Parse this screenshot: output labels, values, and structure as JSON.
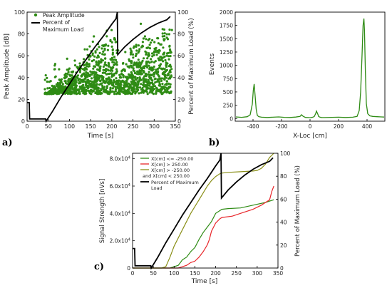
{
  "chart_data": [
    {
      "panel": "a)",
      "type": "scatter",
      "xlabel": "Time [s]",
      "ylabel": "Peak Amplitude [dB]",
      "y2label": "Percent of Maximum Load (%)",
      "xlim": [
        0,
        350
      ],
      "ylim": [
        0,
        100
      ],
      "y2lim": [
        0,
        100
      ],
      "xticks": [
        "0",
        "50",
        "100",
        "150",
        "200",
        "250",
        "300",
        "350"
      ],
      "yticks": [
        "0",
        "20",
        "40",
        "60",
        "80",
        "100"
      ],
      "y2ticks": [
        "0",
        "20",
        "40",
        "60",
        "80",
        "100"
      ],
      "legend": [
        "Peak Amplitude",
        "Percent of Maximum Load"
      ],
      "legend_position": "top-left",
      "colors": {
        "scatter": "#2e8b14",
        "load": "#000000"
      },
      "series": [
        {
          "name": "Peak Amplitude",
          "type": "scatter",
          "note_range": "points between about 40 and 350 s, amplitudes about 25–95 dB, rising envelope up to 212 s, then a dip and recovery"
        },
        {
          "name": "Percent of Maximum Load",
          "type": "line",
          "axis": "right",
          "x": [
            0,
            5,
            6,
            44,
            45,
            60,
            80,
            100,
            120,
            140,
            160,
            180,
            200,
            210,
            213,
            214,
            230,
            250,
            270,
            290,
            310,
            330,
            338
          ],
          "y": [
            17,
            17,
            2,
            2,
            0,
            9,
            22,
            34,
            46,
            57,
            68,
            78,
            89,
            94,
            100,
            61,
            68,
            75,
            81,
            86,
            90,
            93,
            96
          ]
        }
      ]
    },
    {
      "panel": "b)",
      "type": "line",
      "xlabel": "X-Loc [cm]",
      "ylabel": "Events",
      "xlim": [
        -525,
        525
      ],
      "ylim": [
        -50,
        2000
      ],
      "xticks": [
        "-400",
        "-200",
        "0",
        "200",
        "400"
      ],
      "yticks": [
        "0",
        "250",
        "500",
        "750",
        "1000",
        "1250",
        "1500",
        "1750",
        "2000"
      ],
      "colors": {
        "line": "#2e8b14"
      },
      "series": [
        {
          "name": "Events",
          "x": [
            -520,
            -480,
            -440,
            -420,
            -405,
            -398,
            -392,
            -385,
            -378,
            -370,
            -360,
            -340,
            -300,
            -260,
            -220,
            -180,
            -140,
            -100,
            -70,
            -60,
            -50,
            -40,
            -30,
            -10,
            0,
            10,
            20,
            30,
            40,
            45,
            55,
            60,
            70,
            80,
            100,
            150,
            200,
            250,
            300,
            330,
            345,
            355,
            365,
            372,
            378,
            382,
            388,
            395,
            405,
            420,
            440,
            470,
            500,
            520
          ],
          "y": [
            30,
            22,
            35,
            70,
            270,
            530,
            650,
            420,
            180,
            60,
            35,
            25,
            20,
            25,
            30,
            22,
            20,
            28,
            40,
            70,
            45,
            30,
            20,
            18,
            15,
            20,
            25,
            40,
            95,
            140,
            80,
            40,
            25,
            20,
            18,
            22,
            25,
            20,
            25,
            40,
            150,
            500,
            1200,
            1750,
            1880,
            1650,
            900,
            280,
            90,
            50,
            40,
            35,
            30,
            28
          ]
        }
      ]
    },
    {
      "panel": "c)",
      "type": "line",
      "xlabel": "Time [s]",
      "ylabel": "Signal Strength [nVs]",
      "y2label": "Percent of Maximum Load (%)",
      "xlim": [
        0,
        350
      ],
      "ylim": [
        0,
        84000
      ],
      "y2lim": [
        0,
        100
      ],
      "xticks": [
        "0",
        "50",
        "100",
        "150",
        "200",
        "250",
        "300",
        "350"
      ],
      "yticks": [
        "0",
        "2.0x10^4",
        "4.0x10^4",
        "6.0x10^4",
        "8.0x10^4"
      ],
      "y2ticks": [
        "0",
        "20",
        "40",
        "60",
        "80",
        "100"
      ],
      "legend": [
        "X[cm] <= -250.00",
        "X[cm] > 250.00",
        "X[cm] > -250.00",
        "and X[cm] < 250.00",
        "Percent of Maximum",
        "Load"
      ],
      "legend_position": "top-left",
      "colors": {
        "left": "#2e8b14",
        "right": "#e8262a",
        "middle": "#8a8f18",
        "load": "#000000"
      },
      "series": [
        {
          "name": "X[cm] <= -250.00",
          "x": [
            0,
            90,
            110,
            120,
            130,
            140,
            150,
            160,
            170,
            180,
            190,
            200,
            210,
            215,
            230,
            260,
            290,
            320,
            340
          ],
          "y": [
            0,
            0,
            2000,
            6000,
            8000,
            12000,
            15000,
            21000,
            26000,
            30000,
            34000,
            40000,
            42000,
            43000,
            43500,
            44000,
            46000,
            48000,
            50000
          ]
        },
        {
          "name": "X[cm] > 250.00",
          "x": [
            0,
            110,
            130,
            140,
            150,
            160,
            170,
            180,
            185,
            190,
            200,
            210,
            215,
            240,
            260,
            290,
            310,
            330,
            335,
            340
          ],
          "y": [
            0,
            0,
            2000,
            4000,
            5000,
            8000,
            12000,
            17000,
            21000,
            27000,
            33000,
            36000,
            37000,
            38000,
            40000,
            43000,
            46000,
            50000,
            56000,
            60000
          ]
        },
        {
          "name": "X[cm] > -250.00 and X[cm] < 250.00",
          "x": [
            0,
            70,
            80,
            90,
            100,
            110,
            120,
            140,
            160,
            180,
            190,
            200,
            210,
            215,
            230,
            260,
            290,
            300,
            310,
            320,
            330,
            340
          ],
          "y": [
            0,
            0,
            1000,
            8000,
            16000,
            22000,
            28000,
            40000,
            50000,
            60000,
            64000,
            67000,
            69000,
            69500,
            70000,
            70500,
            71000,
            71500,
            73000,
            76000,
            81000,
            84000
          ]
        },
        {
          "name": "Percent of Maximum Load",
          "axis": "right",
          "x": [
            0,
            5,
            6,
            44,
            45,
            60,
            80,
            100,
            120,
            140,
            160,
            180,
            200,
            210,
            213,
            214,
            230,
            250,
            270,
            290,
            310,
            330,
            338
          ],
          "y": [
            17,
            17,
            2,
            2,
            0,
            9,
            22,
            34,
            46,
            57,
            68,
            78,
            89,
            94,
            100,
            61,
            68,
            75,
            81,
            86,
            90,
            93,
            96
          ]
        }
      ]
    }
  ],
  "labels": {
    "a": {
      "letter": "a)",
      "xlabel": "Time [s]",
      "ylabel": "Peak Amplitude [dB]",
      "y2label": "Percent of Maximum Load (%)",
      "legend1": "Peak Amplitude",
      "legend2a": "Percent of",
      "legend2b": "Maximum Load"
    },
    "b": {
      "letter": "b)",
      "xlabel": "X-Loc [cm]",
      "ylabel": "Events"
    },
    "c": {
      "letter": "c)",
      "xlabel": "Time [s]",
      "ylabel": "Signal Strength [nVs]",
      "y2label": "Percent of Maximum Load (%)",
      "legend1": "X[cm] <= -250.00",
      "legend2": "X[cm] > 250.00",
      "legend3a": "X[cm] > -250.00",
      "legend3b": "and X[cm] < 250.00",
      "legend4a": "Percent of Maximum",
      "legend4b": "Load"
    }
  }
}
